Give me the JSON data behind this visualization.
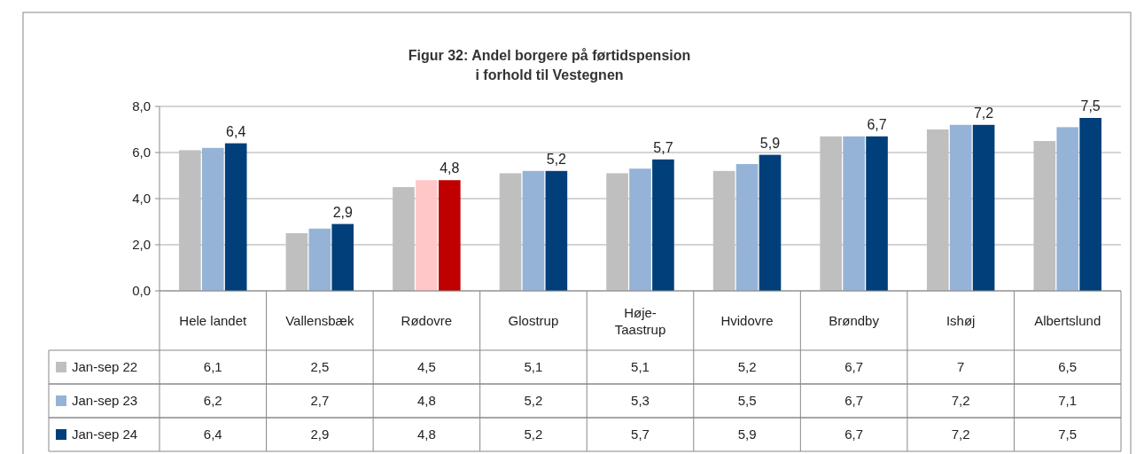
{
  "chart_data": {
    "type": "bar",
    "title": "Figur 32: Andel borgere på førtidspension\ni forhold til Vestegnen",
    "categories": [
      "Hele landet",
      "Vallensbæk",
      "Rødovre",
      "Glostrup",
      "Høje-\nTaastrup",
      "Hvidovre",
      "Brøndby",
      "Ishøj",
      "Albertslund"
    ],
    "series": [
      {
        "name": "Jan-sep 22",
        "color": "#bfbfbf",
        "values": [
          6.1,
          2.5,
          4.5,
          5.1,
          5.1,
          5.2,
          6.7,
          7,
          6.5
        ],
        "value_labels": [
          "6,1",
          "2,5",
          "4,5",
          "5,1",
          "5,1",
          "5,2",
          "6,7",
          "7",
          "6,5"
        ]
      },
      {
        "name": "Jan-sep 23",
        "color": "#95b3d7",
        "colors": [
          "#95b3d7",
          "#95b3d7",
          "#ffc7c7",
          "#95b3d7",
          "#95b3d7",
          "#95b3d7",
          "#95b3d7",
          "#95b3d7",
          "#95b3d7"
        ],
        "values": [
          6.2,
          2.7,
          4.8,
          5.2,
          5.3,
          5.5,
          6.7,
          7.2,
          7.1
        ],
        "value_labels": [
          "6,2",
          "2,7",
          "4,8",
          "5,2",
          "5,3",
          "5,5",
          "6,7",
          "7,2",
          "7,1"
        ]
      },
      {
        "name": "Jan-sep 24",
        "color": "#003f7a",
        "colors": [
          "#003f7a",
          "#003f7a",
          "#c00000",
          "#003f7a",
          "#003f7a",
          "#003f7a",
          "#003f7a",
          "#003f7a",
          "#003f7a"
        ],
        "values": [
          6.4,
          2.9,
          4.8,
          5.2,
          5.7,
          5.9,
          6.7,
          7.2,
          7.5
        ],
        "value_labels": [
          "6,4",
          "2,9",
          "4,8",
          "5,2",
          "5,7",
          "5,9",
          "6,7",
          "7,2",
          "7,5"
        ]
      }
    ],
    "ylim": [
      0,
      8
    ],
    "yticks": [
      {
        "value": 0,
        "label": "0,0"
      },
      {
        "value": 2,
        "label": "2,0"
      },
      {
        "value": 4,
        "label": "4,0"
      },
      {
        "value": 6,
        "label": "6,0"
      },
      {
        "value": 8,
        "label": "8,0"
      }
    ],
    "grid": "y",
    "legend": "bottom"
  }
}
